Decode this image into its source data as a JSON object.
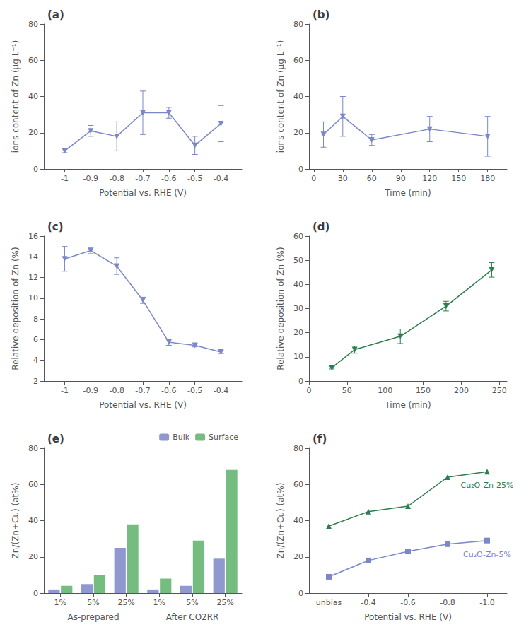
{
  "chart_data": [
    {
      "type": "line",
      "title": "(a)",
      "x": [
        -0.4,
        -0.5,
        -0.6,
        -0.7,
        -0.8,
        -0.9,
        -1.0
      ],
      "series": [
        {
          "color": "#7b87c8",
          "marker": "triangle-down",
          "values": [
            25,
            13,
            31,
            31,
            18,
            21,
            10
          ],
          "yerr": [
            10,
            5,
            3,
            12,
            8,
            3,
            1
          ]
        }
      ],
      "xlabel": "Potential vs. RHE (V)",
      "ylabel": "ions content of Zn (μg L⁻¹)",
      "xlim": [
        -1.08,
        -0.32
      ],
      "xticks": [
        -0.4,
        -0.5,
        -0.6,
        -0.7,
        -0.8,
        -0.9,
        -1.0
      ],
      "ylim": [
        0,
        80
      ],
      "yticks": [
        0,
        20,
        40,
        60,
        80
      ],
      "grid": false
    },
    {
      "type": "line",
      "title": "(b)",
      "x": [
        10,
        30,
        60,
        120,
        180
      ],
      "series": [
        {
          "color": "#7b87c8",
          "marker": "triangle-down",
          "values": [
            19,
            29,
            16,
            22,
            18
          ],
          "yerr": [
            7,
            11,
            3,
            7,
            11
          ]
        }
      ],
      "xlabel": "Time (min)",
      "ylabel": "ions content of Zn (μg L⁻¹)",
      "xlim": [
        -5,
        200
      ],
      "xticks": [
        0,
        30,
        60,
        90,
        120,
        150,
        180
      ],
      "ylim": [
        0,
        80
      ],
      "yticks": [
        0,
        20,
        40,
        60,
        80
      ],
      "grid": false
    },
    {
      "type": "line",
      "title": "(c)",
      "x": [
        -0.4,
        -0.5,
        -0.6,
        -0.7,
        -0.8,
        -0.9,
        -1.0
      ],
      "series": [
        {
          "color": "#7b87c8",
          "marker": "triangle-down",
          "values": [
            4.8,
            5.45,
            5.75,
            9.8,
            13.1,
            14.6,
            13.8
          ],
          "yerr": [
            0.15,
            0.15,
            0.3,
            0.3,
            0.8,
            0.3,
            1.2
          ]
        }
      ],
      "xlabel": "Potential vs. RHE (V)",
      "ylabel": "Relative deposition of Zn (%)",
      "xlim": [
        -1.08,
        -0.32
      ],
      "xticks": [
        -0.4,
        -0.5,
        -0.6,
        -0.7,
        -0.8,
        -0.9,
        -1.0
      ],
      "ylim": [
        2,
        16
      ],
      "yticks": [
        2,
        4,
        6,
        8,
        10,
        12,
        14,
        16
      ],
      "grid": false
    },
    {
      "type": "line",
      "title": "(d)",
      "x": [
        30,
        60,
        120,
        180,
        240
      ],
      "series": [
        {
          "color": "#2e7d4f",
          "marker": "triangle-down",
          "values": [
            5.5,
            13,
            18.5,
            31,
            46
          ],
          "yerr": [
            0.5,
            1.5,
            3,
            2,
            3
          ]
        }
      ],
      "xlabel": "Time (min)",
      "ylabel": "Relative deposition of Zn (%)",
      "xlim": [
        0,
        260
      ],
      "xticks": [
        0,
        50,
        100,
        150,
        200,
        250
      ],
      "ylim": [
        0,
        60
      ],
      "yticks": [
        0,
        10,
        20,
        30,
        40,
        50,
        60
      ],
      "grid": false
    },
    {
      "type": "bar",
      "title": "(e)",
      "categories": [
        "1%",
        "5%",
        "25%",
        "1%",
        "5%",
        "25%"
      ],
      "xlabel": [
        "As-prepared",
        "After CO2RR"
      ],
      "series": [
        {
          "name": "Bulk",
          "color": "#7b87c8",
          "values": [
            2,
            5,
            25,
            2,
            4,
            19
          ]
        },
        {
          "name": "Surface",
          "color": "#5db06a",
          "values": [
            4,
            10,
            38,
            8,
            29,
            68
          ]
        }
      ],
      "ylabel": "Zn/(Zn+Cu) (at%)",
      "ylim": [
        0,
        80
      ],
      "yticks": [
        0,
        20,
        40,
        60,
        80
      ],
      "legend": "upper right",
      "grid": false
    },
    {
      "type": "line",
      "title": "(f)",
      "categories": [
        "unbias",
        "-0.4",
        "-0.6",
        "-0.8",
        "-1.0"
      ],
      "series": [
        {
          "name": "Cu₂O-Zn-25%",
          "color": "#2e7d4f",
          "marker": "triangle",
          "values": [
            37,
            45,
            48,
            64,
            67
          ]
        },
        {
          "name": "Cu₂O-Zn-5%",
          "color": "#7b87c8",
          "marker": "square",
          "values": [
            9,
            18,
            23,
            27,
            29
          ]
        }
      ],
      "xlabel": "Potential vs. RHE (V)",
      "ylabel": "Zn/(Zn+Cu) (at%)",
      "ylim": [
        0,
        80
      ],
      "yticks": [
        0,
        20,
        40,
        60,
        80
      ],
      "grid": false
    }
  ]
}
